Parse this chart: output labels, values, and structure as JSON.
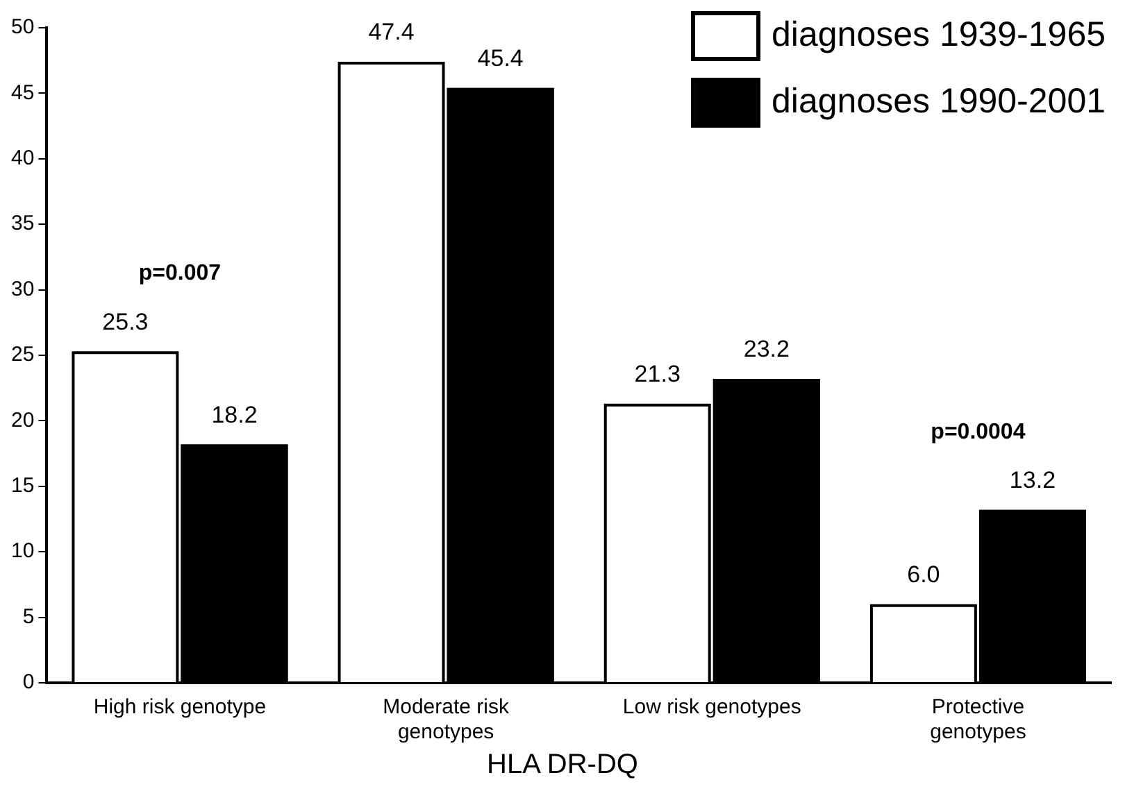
{
  "chart_data": {
    "type": "bar",
    "xlabel": "HLA DR-DQ",
    "categories": [
      "High risk genotype",
      "Moderate risk genotypes",
      "Low risk genotypes",
      "Protective genotypes"
    ],
    "series": [
      {
        "name": "diagnoses 1939-1965",
        "color": "#ffffff",
        "values": [
          25.3,
          47.4,
          21.3,
          6.0
        ],
        "value_labels": [
          "25.3",
          "47.4",
          "21.3",
          "6.0"
        ]
      },
      {
        "name": "diagnoses 1990-2001",
        "color": "#000000",
        "values": [
          18.2,
          45.4,
          23.2,
          13.2
        ],
        "value_labels": [
          "18.2",
          "45.4",
          "23.2",
          "13.2"
        ]
      }
    ],
    "annotations": [
      "p=0.007",
      "p=0.0004"
    ],
    "ylim": [
      0,
      50
    ],
    "yticks": [
      0,
      5,
      10,
      15,
      20,
      25,
      30,
      35,
      40,
      45,
      50
    ],
    "grid": false,
    "legend": "top right"
  }
}
